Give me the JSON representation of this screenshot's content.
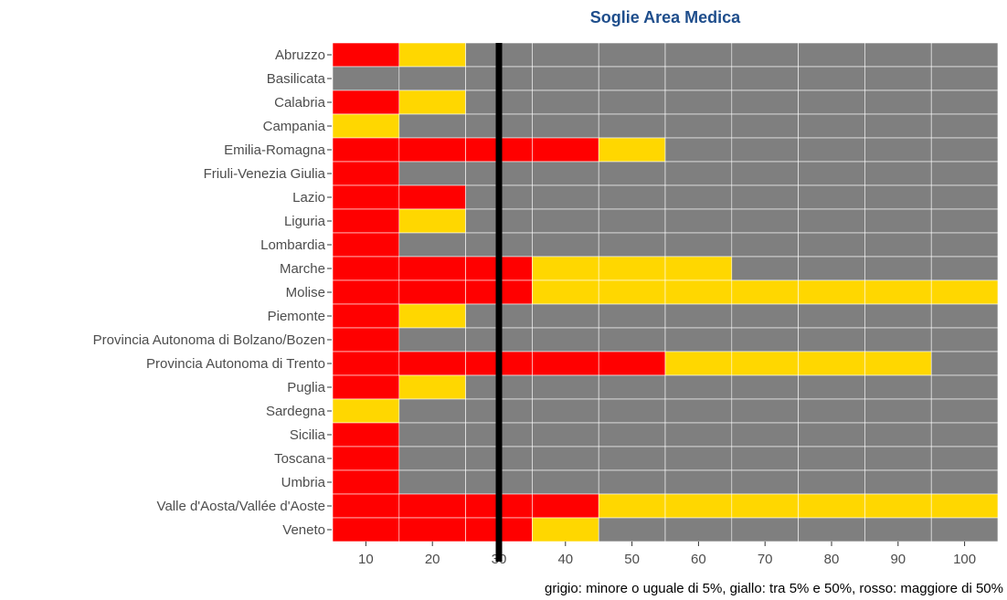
{
  "chart_data": {
    "type": "tile",
    "title": "Soglie Area Medica",
    "caption": "grigio: minore o uguale di 5%, giallo: tra 5% e 50%, rosso: maggiore di 50%",
    "categories": [
      "Abruzzo",
      "Basilicata",
      "Calabria",
      "Campania",
      "Emilia-Romagna",
      "Friuli-Venezia Giulia",
      "Lazio",
      "Liguria",
      "Lombardia",
      "Marche",
      "Molise",
      "Piemonte",
      "Provincia Autonoma di Bolzano/Bozen",
      "Provincia Autonoma di Trento",
      "Puglia",
      "Sardegna",
      "Sicilia",
      "Toscana",
      "Umbria",
      "Valle d'Aosta/Vallée d'Aoste",
      "Veneto"
    ],
    "x": [
      10,
      20,
      30,
      40,
      50,
      60,
      70,
      80,
      90,
      100
    ],
    "tile_width": 10,
    "xlim": [
      5,
      105
    ],
    "xticks": [
      10,
      20,
      30,
      40,
      50,
      60,
      70,
      80,
      90,
      100
    ],
    "vline": 30,
    "vline_color": "#000000",
    "rows": [
      [
        "#ff0000",
        "#ffd700",
        "#7f7f7f",
        "#7f7f7f",
        "#7f7f7f",
        "#7f7f7f",
        "#7f7f7f",
        "#7f7f7f",
        "#7f7f7f",
        "#7f7f7f"
      ],
      [
        "#7f7f7f",
        "#7f7f7f",
        "#7f7f7f",
        "#7f7f7f",
        "#7f7f7f",
        "#7f7f7f",
        "#7f7f7f",
        "#7f7f7f",
        "#7f7f7f",
        "#7f7f7f"
      ],
      [
        "#ff0000",
        "#ffd700",
        "#7f7f7f",
        "#7f7f7f",
        "#7f7f7f",
        "#7f7f7f",
        "#7f7f7f",
        "#7f7f7f",
        "#7f7f7f",
        "#7f7f7f"
      ],
      [
        "#ffd700",
        "#7f7f7f",
        "#7f7f7f",
        "#7f7f7f",
        "#7f7f7f",
        "#7f7f7f",
        "#7f7f7f",
        "#7f7f7f",
        "#7f7f7f",
        "#7f7f7f"
      ],
      [
        "#ff0000",
        "#ff0000",
        "#ff0000",
        "#ff0000",
        "#ffd700",
        "#7f7f7f",
        "#7f7f7f",
        "#7f7f7f",
        "#7f7f7f",
        "#7f7f7f"
      ],
      [
        "#ff0000",
        "#7f7f7f",
        "#7f7f7f",
        "#7f7f7f",
        "#7f7f7f",
        "#7f7f7f",
        "#7f7f7f",
        "#7f7f7f",
        "#7f7f7f",
        "#7f7f7f"
      ],
      [
        "#ff0000",
        "#ff0000",
        "#7f7f7f",
        "#7f7f7f",
        "#7f7f7f",
        "#7f7f7f",
        "#7f7f7f",
        "#7f7f7f",
        "#7f7f7f",
        "#7f7f7f"
      ],
      [
        "#ff0000",
        "#ffd700",
        "#7f7f7f",
        "#7f7f7f",
        "#7f7f7f",
        "#7f7f7f",
        "#7f7f7f",
        "#7f7f7f",
        "#7f7f7f",
        "#7f7f7f"
      ],
      [
        "#ff0000",
        "#7f7f7f",
        "#7f7f7f",
        "#7f7f7f",
        "#7f7f7f",
        "#7f7f7f",
        "#7f7f7f",
        "#7f7f7f",
        "#7f7f7f",
        "#7f7f7f"
      ],
      [
        "#ff0000",
        "#ff0000",
        "#ff0000",
        "#ffd700",
        "#ffd700",
        "#ffd700",
        "#7f7f7f",
        "#7f7f7f",
        "#7f7f7f",
        "#7f7f7f"
      ],
      [
        "#ff0000",
        "#ff0000",
        "#ff0000",
        "#ffd700",
        "#ffd700",
        "#ffd700",
        "#ffd700",
        "#ffd700",
        "#ffd700",
        "#ffd700"
      ],
      [
        "#ff0000",
        "#ffd700",
        "#7f7f7f",
        "#7f7f7f",
        "#7f7f7f",
        "#7f7f7f",
        "#7f7f7f",
        "#7f7f7f",
        "#7f7f7f",
        "#7f7f7f"
      ],
      [
        "#ff0000",
        "#7f7f7f",
        "#7f7f7f",
        "#7f7f7f",
        "#7f7f7f",
        "#7f7f7f",
        "#7f7f7f",
        "#7f7f7f",
        "#7f7f7f",
        "#7f7f7f"
      ],
      [
        "#ff0000",
        "#ff0000",
        "#ff0000",
        "#ff0000",
        "#ff0000",
        "#ffd700",
        "#ffd700",
        "#ffd700",
        "#ffd700",
        "#7f7f7f"
      ],
      [
        "#ff0000",
        "#ffd700",
        "#7f7f7f",
        "#7f7f7f",
        "#7f7f7f",
        "#7f7f7f",
        "#7f7f7f",
        "#7f7f7f",
        "#7f7f7f",
        "#7f7f7f"
      ],
      [
        "#ffd700",
        "#7f7f7f",
        "#7f7f7f",
        "#7f7f7f",
        "#7f7f7f",
        "#7f7f7f",
        "#7f7f7f",
        "#7f7f7f",
        "#7f7f7f",
        "#7f7f7f"
      ],
      [
        "#ff0000",
        "#7f7f7f",
        "#7f7f7f",
        "#7f7f7f",
        "#7f7f7f",
        "#7f7f7f",
        "#7f7f7f",
        "#7f7f7f",
        "#7f7f7f",
        "#7f7f7f"
      ],
      [
        "#ff0000",
        "#7f7f7f",
        "#7f7f7f",
        "#7f7f7f",
        "#7f7f7f",
        "#7f7f7f",
        "#7f7f7f",
        "#7f7f7f",
        "#7f7f7f",
        "#7f7f7f"
      ],
      [
        "#ff0000",
        "#7f7f7f",
        "#7f7f7f",
        "#7f7f7f",
        "#7f7f7f",
        "#7f7f7f",
        "#7f7f7f",
        "#7f7f7f",
        "#7f7f7f",
        "#7f7f7f"
      ],
      [
        "#ff0000",
        "#ff0000",
        "#ff0000",
        "#ff0000",
        "#ffd700",
        "#ffd700",
        "#ffd700",
        "#ffd700",
        "#ffd700",
        "#ffd700"
      ],
      [
        "#ff0000",
        "#ff0000",
        "#ff0000",
        "#ffd700",
        "#7f7f7f",
        "#7f7f7f",
        "#7f7f7f",
        "#7f7f7f",
        "#7f7f7f",
        "#7f7f7f"
      ]
    ]
  }
}
